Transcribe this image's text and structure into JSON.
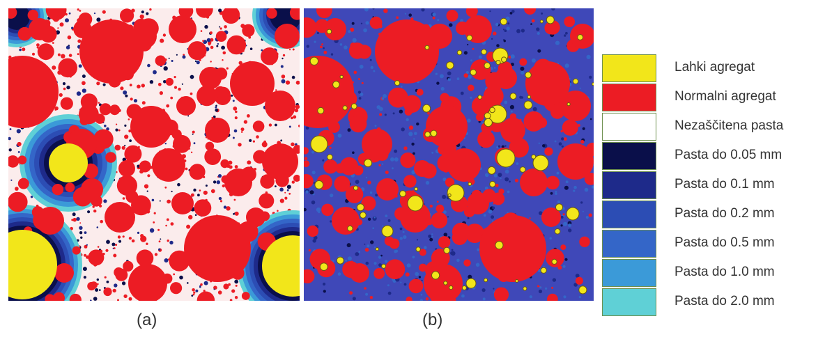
{
  "figure": {
    "panel_a_caption": "(a)",
    "panel_b_caption": "(b)"
  },
  "legend": {
    "items": [
      {
        "label": "Lahki agregat",
        "color": "#f2e61a"
      },
      {
        "label": "Normalni agregat",
        "color": "#ec1c24"
      },
      {
        "label": "Nezaščitena pasta",
        "color": "#ffffff"
      },
      {
        "label": "Pasta do 0.05 mm",
        "color": "#0a0f4a"
      },
      {
        "label": "Pasta do 0.1 mm",
        "color": "#1e2a8a"
      },
      {
        "label": "Pasta do 0.2 mm",
        "color": "#2c4db4"
      },
      {
        "label": "Pasta do 0.5 mm",
        "color": "#3466c8"
      },
      {
        "label": "Pasta do 1.0 mm",
        "color": "#3b9ad8"
      },
      {
        "label": "Pasta do 2.0 mm",
        "color": "#5fd0d6"
      }
    ]
  }
}
